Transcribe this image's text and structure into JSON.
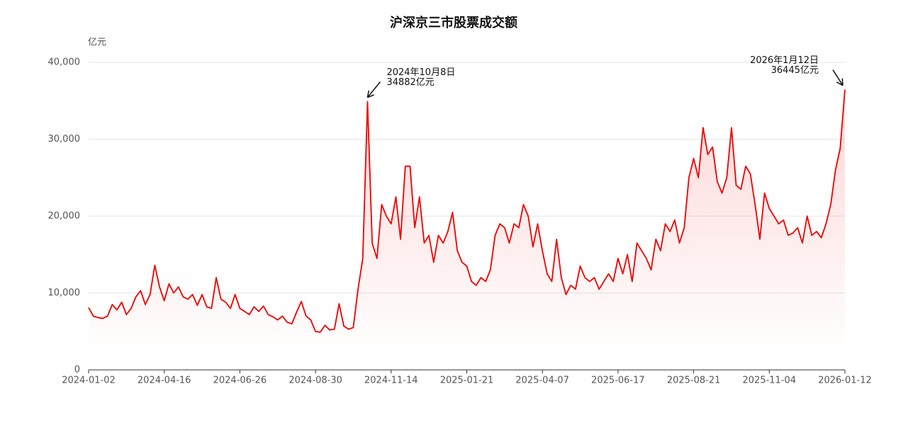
{
  "chart_data": {
    "type": "line",
    "title": "沪深京三市股票成交额",
    "y_label": "亿元",
    "categories": [
      "2024-01-02",
      null,
      null,
      null,
      null,
      null,
      null,
      null,
      null,
      null,
      null,
      null,
      null,
      null,
      null,
      null,
      "2024-04-16",
      null,
      null,
      null,
      null,
      null,
      null,
      null,
      null,
      null,
      null,
      null,
      null,
      null,
      null,
      null,
      "2024-06-26",
      null,
      null,
      null,
      null,
      null,
      null,
      null,
      null,
      null,
      null,
      null,
      null,
      null,
      null,
      null,
      "2024-08-30",
      null,
      null,
      null,
      null,
      null,
      null,
      null,
      null,
      null,
      null,
      null,
      null,
      null,
      null,
      null,
      "2024-11-14",
      null,
      null,
      null,
      null,
      null,
      null,
      null,
      null,
      null,
      null,
      null,
      null,
      null,
      null,
      null,
      "2025-01-21",
      null,
      null,
      null,
      null,
      null,
      null,
      null,
      null,
      null,
      null,
      null,
      null,
      null,
      null,
      null,
      "2025-04-07",
      null,
      null,
      null,
      null,
      null,
      null,
      null,
      null,
      null,
      null,
      null,
      null,
      null,
      null,
      null,
      "2025-06-17",
      null,
      null,
      null,
      null,
      null,
      null,
      null,
      null,
      null,
      null,
      null,
      null,
      null,
      null,
      null,
      "2025-08-21",
      null,
      null,
      null,
      null,
      null,
      null,
      null,
      null,
      null,
      null,
      null,
      null,
      null,
      null,
      null,
      "2025-11-04",
      null,
      null,
      null,
      null,
      null,
      null,
      null,
      null,
      null,
      null,
      null,
      null,
      null,
      null,
      null,
      "2026-01-12"
    ],
    "series": [
      {
        "name": "成交额",
        "color": "#ee0000",
        "values": [
          8100,
          7000,
          6800,
          6700,
          7000,
          8500,
          7800,
          8800,
          7200,
          8000,
          9500,
          10300,
          8500,
          9800,
          13600,
          10800,
          9000,
          11200,
          10000,
          10800,
          9500,
          9200,
          9800,
          8400,
          9800,
          8200,
          8000,
          12000,
          9200,
          8800,
          8000,
          9800,
          8000,
          7600,
          7200,
          8200,
          7600,
          8300,
          7200,
          6900,
          6500,
          7000,
          6200,
          6000,
          7500,
          8900,
          7000,
          6500,
          5000,
          4900,
          5800,
          5200,
          5300,
          8600,
          5700,
          5300,
          5500,
          10500,
          14500,
          34882,
          16500,
          14500,
          21500,
          20000,
          19000,
          22500,
          17000,
          26500,
          26500,
          18500,
          22500,
          16500,
          17500,
          14000,
          17500,
          16500,
          18000,
          20500,
          15500,
          14000,
          13500,
          11500,
          11000,
          12000,
          11500,
          13000,
          17500,
          19000,
          18500,
          16500,
          19000,
          18500,
          21500,
          20000,
          16000,
          19000,
          15500,
          12500,
          11500,
          17000,
          12000,
          9800,
          11000,
          10500,
          13500,
          12000,
          11500,
          12000,
          10500,
          11500,
          12500,
          11500,
          14500,
          12500,
          15000,
          11500,
          16500,
          15500,
          14500,
          13000,
          17000,
          15500,
          19000,
          18000,
          19500,
          16500,
          18500,
          25000,
          27500,
          25000,
          31500,
          28000,
          29000,
          24500,
          23000,
          25000,
          31500,
          24000,
          23500,
          26500,
          25500,
          21500,
          17000,
          23000,
          21000,
          20000,
          19000,
          19500,
          17500,
          17800,
          18500,
          16500,
          20000,
          17500,
          18000,
          17200,
          19000,
          21500,
          26000,
          28800,
          36445
        ]
      }
    ],
    "ylim": [
      0,
      40000
    ],
    "yticks": [
      0,
      {
        "value": 10000,
        "label": "10,000"
      },
      {
        "value": 20000,
        "label": "20,000"
      },
      {
        "value": 30000,
        "label": "30,000"
      },
      {
        "value": 40000,
        "label": "40,000"
      }
    ],
    "grid": true,
    "annotations": [
      {
        "date": "2024年10月8日",
        "value": 34882,
        "label": "34882亿元",
        "side": "right"
      },
      {
        "date": "2026年1月12日",
        "value": 36445,
        "label": "36445亿元",
        "side": "left"
      }
    ]
  }
}
